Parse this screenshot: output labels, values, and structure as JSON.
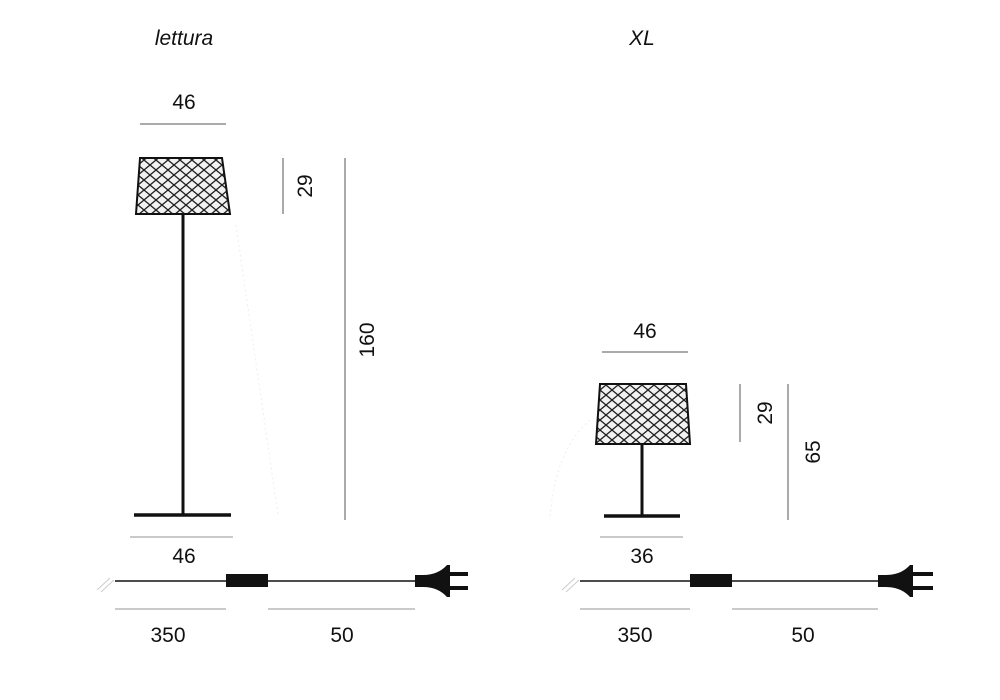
{
  "lamps": [
    {
      "title": "lettura",
      "shade_width": "46",
      "shade_height": "29",
      "total_height": "160",
      "base_width": "46",
      "cable_length": "350",
      "plug_cable_length": "50"
    },
    {
      "title": "XL",
      "shade_width": "46",
      "shade_height": "29",
      "total_height": "65",
      "base_width": "36",
      "cable_length": "350",
      "plug_cable_length": "50"
    }
  ],
  "colors": {
    "line": "#111111",
    "dimension": "#555555"
  }
}
